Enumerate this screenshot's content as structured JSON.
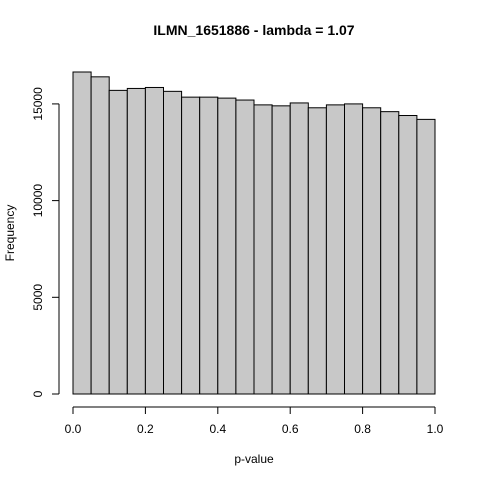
{
  "chart_data": {
    "type": "bar",
    "title": "ILMN_1651886 - lambda = 1.07",
    "xlabel": "p-value",
    "ylabel": "Frequency",
    "bin_edges": [
      0.0,
      0.05,
      0.1,
      0.15,
      0.2,
      0.25,
      0.3,
      0.35,
      0.4,
      0.45,
      0.5,
      0.55,
      0.6,
      0.65,
      0.7,
      0.75,
      0.8,
      0.85,
      0.9,
      0.95,
      1.0
    ],
    "values": [
      16650,
      16400,
      15700,
      15800,
      15850,
      15650,
      15350,
      15350,
      15300,
      15200,
      14950,
      14900,
      15050,
      14800,
      14950,
      15000,
      14800,
      14600,
      14400,
      14200
    ],
    "xlim": [
      0,
      1
    ],
    "ylim": [
      0,
      16650
    ],
    "x_ticks": [
      "0.0",
      "0.2",
      "0.4",
      "0.6",
      "0.8",
      "1.0"
    ],
    "y_ticks": [
      "0",
      "5000",
      "10000",
      "15000"
    ],
    "bar_fill": "#c8c8c8",
    "grid": false
  }
}
